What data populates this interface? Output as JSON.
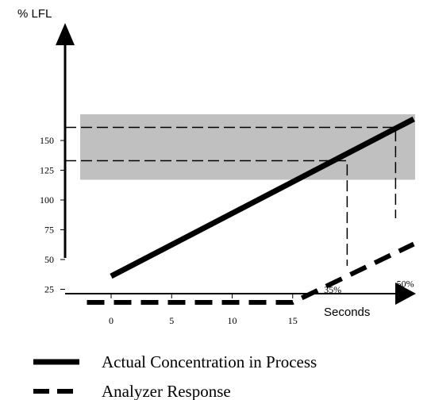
{
  "chart_data": {
    "type": "line",
    "ylabel": "% LFL",
    "xlabel": "Seconds",
    "x_ticks": [
      0,
      5,
      10,
      15
    ],
    "y_ticks": [
      25,
      50,
      75,
      100,
      125,
      150
    ],
    "xlim": [
      -2,
      25
    ],
    "ylim": [
      18,
      175
    ],
    "band": {
      "y": [
        117,
        172
      ]
    },
    "annotations": [
      {
        "text": "35%",
        "x": 18.3,
        "y": 22
      },
      {
        "text": "50%",
        "x": 24.3,
        "y": 27
      }
    ],
    "guides": [
      {
        "y": 133,
        "x": 19.5
      },
      {
        "y": 161,
        "x": 23.5
      }
    ],
    "series": [
      {
        "name": "Actual Concentration in Process",
        "style": "solid",
        "x": [
          0,
          25
        ],
        "y": [
          36,
          168
        ]
      },
      {
        "name": "Analyzer Response",
        "style": "dashed",
        "x": [
          -2,
          15,
          25
        ],
        "y": [
          14,
          14,
          63
        ]
      }
    ],
    "colors": {
      "band": "#c0c0c0",
      "line": "#000000"
    }
  }
}
